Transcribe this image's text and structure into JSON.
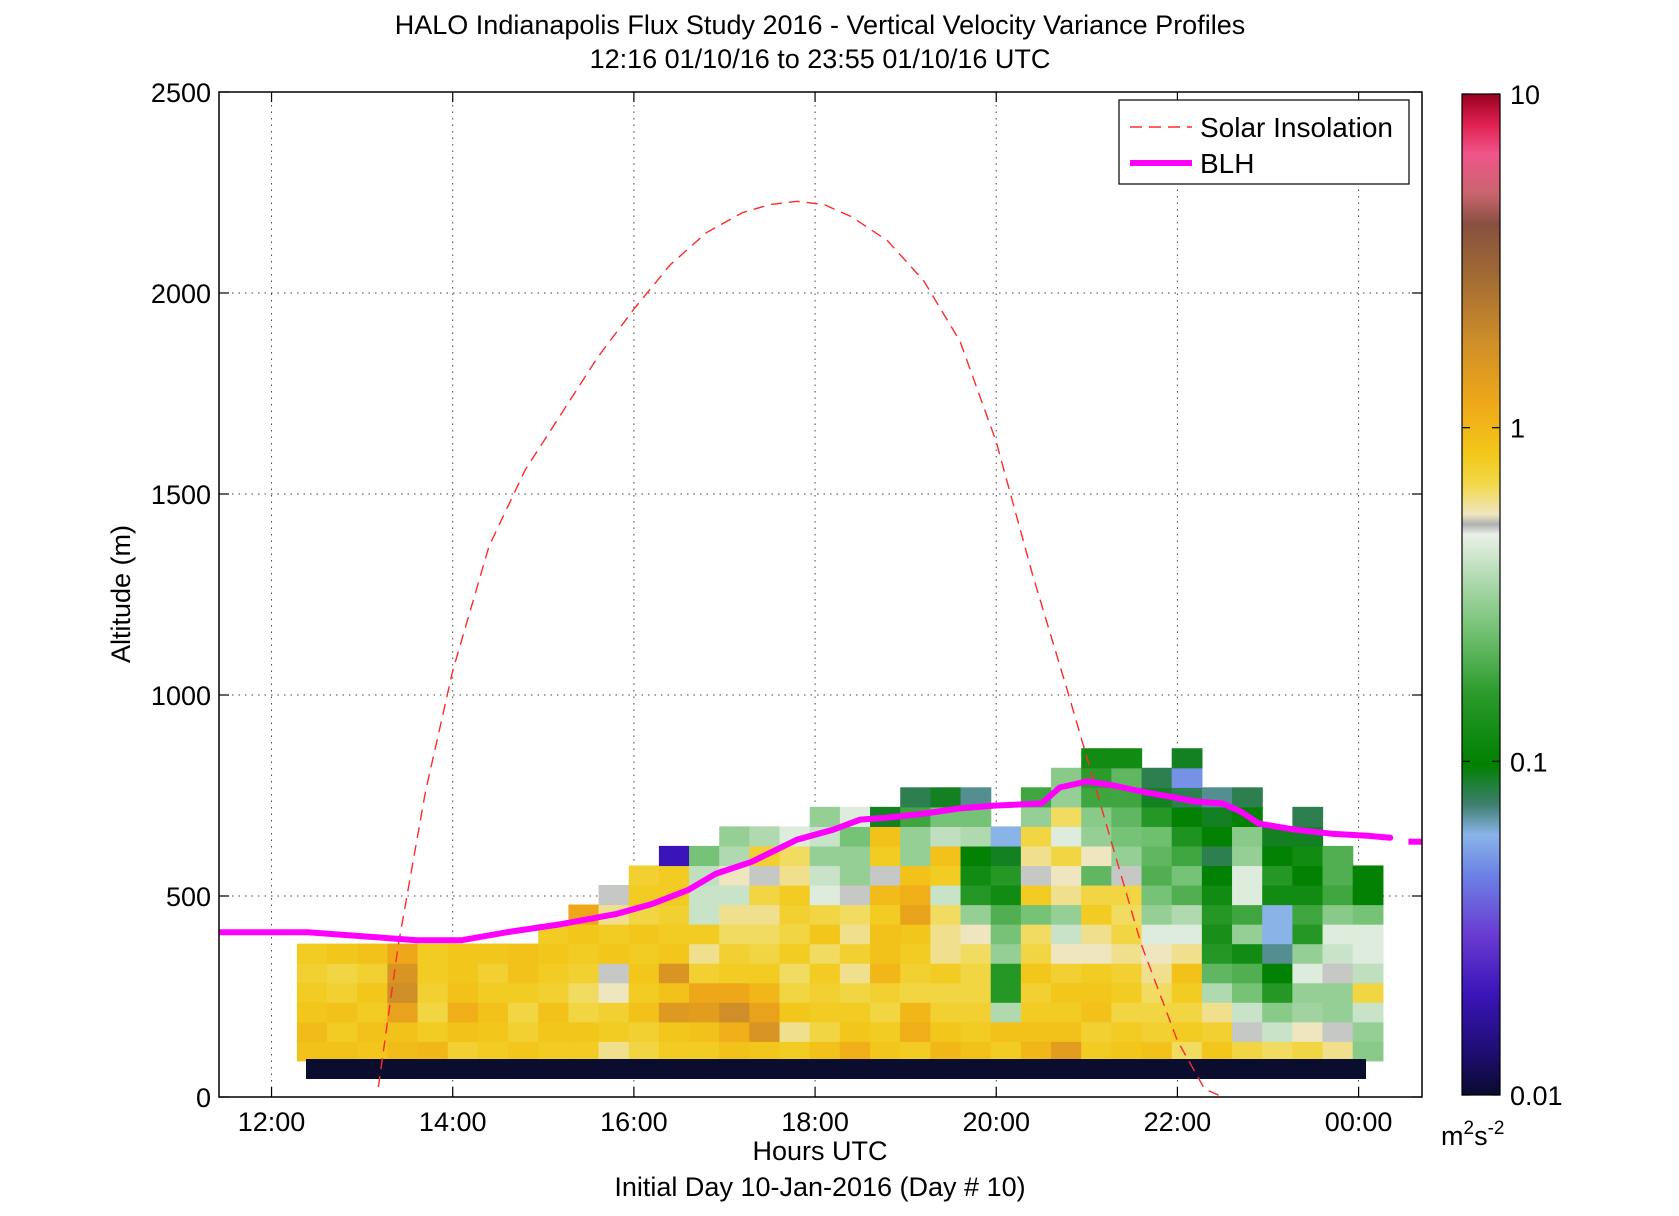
{
  "chart_data": {
    "type": "heatmap",
    "title_lines": [
      "HALO Indianapolis Flux Study 2016 - Vertical Velocity Variance Profiles",
      "12:16 01/10/16 to 23:55 01/10/16  UTC"
    ],
    "xlabel": "Hours UTC",
    "xlabel2": "Initial Day 10-Jan-2016 (Day # 10)",
    "ylabel": "Altitude (m)",
    "xlim": [
      11.42,
      24.7
    ],
    "ylim": [
      0,
      2500
    ],
    "x_ticks": [
      12,
      14,
      16,
      18,
      20,
      22,
      24
    ],
    "x_tick_labels": [
      "12:00",
      "14:00",
      "16:00",
      "18:00",
      "20:00",
      "22:00",
      "00:00"
    ],
    "y_ticks": [
      0,
      500,
      1000,
      1500,
      2000,
      2500
    ],
    "y_tick_labels": [
      "0",
      "500",
      "1000",
      "1500",
      "2000",
      "2500"
    ],
    "grid": true,
    "legend": {
      "placement": "top-right",
      "entries": [
        {
          "label": "Solar Insolation",
          "color": "#ff2a2a",
          "style": "dashed"
        },
        {
          "label": "BLH",
          "color": "#ff00ff",
          "style": "solid"
        }
      ]
    },
    "colorbar": {
      "scale": "log",
      "range": [
        0.01,
        10
      ],
      "ticks": [
        10,
        1,
        0.1,
        0.01
      ],
      "tick_labels": [
        "10",
        "1",
        "0.1",
        "0.01"
      ],
      "units_base": "m",
      "units_sup1": "2",
      "units_mid": "s",
      "units_sup2": "-2"
    },
    "heatmap": {
      "time_start": 12.28,
      "time_step": 0.333,
      "bin_bottom": 90,
      "bin_height": 48.6,
      "cells": [
        [
          0.9,
          0.95,
          0.85,
          0.8,
          0.75,
          0.8
        ],
        [
          0.9,
          0.8,
          0.9,
          0.75,
          0.7,
          0.85
        ],
        [
          0.85,
          0.9,
          0.8,
          0.85,
          0.75,
          0.9
        ],
        [
          0.95,
          0.9,
          1.3,
          1.8,
          1.6,
          1.2
        ],
        [
          1.0,
          0.8,
          0.7,
          0.75,
          0.8,
          0.8
        ],
        [
          0.75,
          0.9,
          1.1,
          0.9,
          0.85,
          0.85
        ],
        [
          0.8,
          0.85,
          0.9,
          0.8,
          0.75,
          0.85
        ],
        [
          0.85,
          0.75,
          0.7,
          0.8,
          0.9,
          0.9
        ],
        [
          0.8,
          0.85,
          0.9,
          0.75,
          0.8,
          0.85,
          0.8
        ],
        [
          0.8,
          0.85,
          0.7,
          0.65,
          0.75,
          0.8,
          0.85,
          1.2
        ],
        [
          0.6,
          0.8,
          0.75,
          0.55,
          0.5,
          0.85,
          0.8,
          0.6,
          0.5
        ],
        [
          0.7,
          0.75,
          0.9,
          0.8,
          0.85,
          0.8,
          0.85,
          0.7,
          0.8,
          0.75
        ],
        [
          0.8,
          0.85,
          1.5,
          0.9,
          1.6,
          0.85,
          0.8,
          0.75,
          0.8,
          0.8,
          0.02
        ],
        [
          0.8,
          0.9,
          1.4,
          1.2,
          0.75,
          0.6,
          0.8,
          0.4,
          0.4,
          0.38,
          0.25
        ],
        [
          0.9,
          1.1,
          1.8,
          1.2,
          0.8,
          0.75,
          0.65,
          0.6,
          0.4,
          0.55,
          0.35,
          0.3
        ],
        [
          0.85,
          1.6,
          1.3,
          1.0,
          0.8,
          0.7,
          0.65,
          0.6,
          0.7,
          0.5,
          0.75,
          0.35
        ],
        [
          0.8,
          0.6,
          0.85,
          0.7,
          0.65,
          0.8,
          0.7,
          0.75,
          0.8,
          0.6,
          0.65,
          0.45
        ],
        [
          0.9,
          0.7,
          0.8,
          0.75,
          0.8,
          0.65,
          0.85,
          0.7,
          0.45,
          0.4,
          0.3,
          0.4,
          0.3
        ],
        [
          1.1,
          0.85,
          0.8,
          0.7,
          0.6,
          0.75,
          0.6,
          0.65,
          0.5,
          0.3,
          0.3,
          0.25,
          0.45
        ],
        [
          0.85,
          0.8,
          0.7,
          0.75,
          1.0,
          0.9,
          0.9,
          0.8,
          0.95,
          0.5,
          0.8,
          0.9,
          0.09
        ],
        [
          0.8,
          1.1,
          1.0,
          0.7,
          0.75,
          0.8,
          0.85,
          1.3,
          1.1,
          0.9,
          0.3,
          0.3,
          0.18,
          0.08
        ],
        [
          1.0,
          0.85,
          0.75,
          0.7,
          0.8,
          0.6,
          0.6,
          0.65,
          0.4,
          0.8,
          0.9,
          0.38,
          0.25,
          0.09
        ],
        [
          0.9,
          0.8,
          0.75,
          0.7,
          0.7,
          0.65,
          0.55,
          0.3,
          0.15,
          0.12,
          0.1,
          0.35,
          0.25,
          0.07
        ],
        [
          0.8,
          0.9,
          0.35,
          0.15,
          0.15,
          0.3,
          0.25,
          0.2,
          0.12,
          0.15,
          0.09,
          0.06
        ],
        [
          1.0,
          0.9,
          0.8,
          0.75,
          0.85,
          0.7,
          0.65,
          0.25,
          0.8,
          0.5,
          0.6,
          0.7,
          0.3,
          0.18
        ],
        [
          1.4,
          0.9,
          0.8,
          0.85,
          0.75,
          0.55,
          0.4,
          0.3,
          0.6,
          0.55,
          0.7,
          0.45,
          0.65,
          0.3,
          0.28
        ],
        [
          0.8,
          0.75,
          0.9,
          0.85,
          0.8,
          0.55,
          0.6,
          0.8,
          0.7,
          0.22,
          0.55,
          0.3,
          0.28,
          0.18,
          0.16,
          0.12
        ],
        [
          0.85,
          0.8,
          0.7,
          0.8,
          0.75,
          0.6,
          0.7,
          0.65,
          0.7,
          0.5,
          0.3,
          0.25,
          0.22,
          0.18,
          0.22,
          0.12
        ],
        [
          0.9,
          0.75,
          0.7,
          0.65,
          0.6,
          0.55,
          0.45,
          0.3,
          0.25,
          0.2,
          0.22,
          0.24,
          0.15,
          0.09,
          0.08
        ],
        [
          0.65,
          0.8,
          0.7,
          0.8,
          0.9,
          0.6,
          0.45,
          0.35,
          0.2,
          0.25,
          0.18,
          0.14,
          0.1,
          0.08,
          0.05,
          0.09
        ],
        [
          0.85,
          0.75,
          0.6,
          0.35,
          0.22,
          0.15,
          0.13,
          0.15,
          0.12,
          0.1,
          0.08,
          0.1,
          0.09,
          0.07
        ],
        [
          0.7,
          0.5,
          0.4,
          0.25,
          0.2,
          0.12,
          0.3,
          0.18,
          0.45,
          0.45,
          0.3,
          0.28,
          0.1,
          0.08
        ],
        [
          0.65,
          0.4,
          0.28,
          0.15,
          0.1,
          0.07,
          0.06,
          0.06,
          0.12,
          0.15,
          0.1,
          0.09
        ],
        [
          0.7,
          0.55,
          0.32,
          0.3,
          0.45,
          0.3,
          0.15,
          0.18,
          0.12,
          0.1,
          0.12,
          0.09,
          0.08
        ],
        [
          0.6,
          0.5,
          0.3,
          0.3,
          0.5,
          0.4,
          0.45,
          0.28,
          0.18,
          0.2,
          0.2
        ],
        [
          0.28,
          0.3,
          0.4,
          0.7,
          0.38,
          0.45,
          0.45,
          0.25,
          0.1,
          0.1
        ]
      ]
    },
    "blh": {
      "x": [
        11.42,
        12.4,
        13.0,
        13.6,
        14.1,
        14.6,
        15.2,
        15.8,
        16.2,
        16.6,
        16.9,
        17.3,
        17.8,
        18.2,
        18.5,
        18.8,
        19.2,
        19.6,
        20.0,
        20.5,
        20.7,
        21.0,
        21.3,
        21.6,
        21.9,
        22.2,
        22.5,
        22.7,
        22.9,
        23.3,
        23.7,
        24.1,
        24.35
      ],
      "y": [
        410,
        410,
        400,
        390,
        390,
        410,
        430,
        455,
        480,
        515,
        555,
        585,
        640,
        665,
        690,
        695,
        705,
        718,
        725,
        730,
        770,
        785,
        775,
        760,
        748,
        735,
        730,
        710,
        680,
        665,
        655,
        650,
        645
      ],
      "segment2_x": [
        24.55,
        24.7
      ],
      "segment2_y": [
        635,
        635
      ]
    },
    "solar_insolation": {
      "x": [
        13.18,
        13.4,
        13.7,
        14.0,
        14.4,
        14.8,
        15.2,
        15.6,
        16.0,
        16.4,
        16.8,
        17.2,
        17.5,
        17.8,
        18.1,
        18.4,
        18.8,
        19.2,
        19.6,
        20.0,
        20.4,
        20.8,
        21.2,
        21.6,
        22.0,
        22.3,
        22.5
      ],
      "y": [
        25,
        380,
        760,
        1060,
        1370,
        1560,
        1700,
        1840,
        1960,
        2070,
        2150,
        2200,
        2220,
        2228,
        2220,
        2190,
        2130,
        2030,
        1880,
        1630,
        1300,
        1000,
        690,
        380,
        140,
        20,
        0
      ]
    }
  }
}
